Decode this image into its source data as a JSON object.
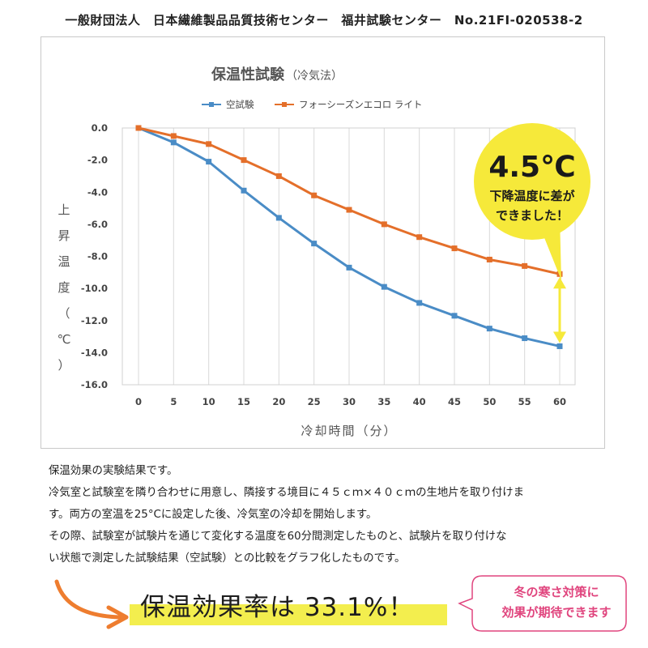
{
  "header": {
    "text": "一般財団法人　日本繊維製品品質技術センター　福井試験センター　No.21FI-020538-2"
  },
  "chart_data": {
    "type": "line",
    "title": "保温性試験",
    "subtitle": "（冷気法）",
    "xlabel": "冷却時間（分）",
    "ylabel": "上昇温度（℃）",
    "x": [
      0,
      5,
      10,
      15,
      20,
      25,
      30,
      35,
      40,
      45,
      50,
      55,
      60
    ],
    "xlim": [
      0,
      60
    ],
    "ylim": [
      -16,
      0
    ],
    "yticks": [
      0,
      -2,
      -4,
      -6,
      -8,
      -10,
      -12,
      -14,
      -16
    ],
    "ytick_labels": [
      "0.0",
      "-2.0",
      "-4.0",
      "-6.0",
      "-8.0",
      "-10.0",
      "-12.0",
      "-14.0",
      "-16.0"
    ],
    "grid": "vertical",
    "legend_position": "top",
    "series": [
      {
        "name": "空試験",
        "color": "#4a8cc6",
        "marker": "square",
        "values": [
          0,
          -0.9,
          -2.1,
          -3.9,
          -5.6,
          -7.2,
          -8.7,
          -9.9,
          -10.9,
          -11.7,
          -12.5,
          -13.1,
          -13.6
        ]
      },
      {
        "name": "フォーシーズンエコロ ライト",
        "color": "#e46f2a",
        "marker": "square",
        "values": [
          0,
          -0.5,
          -1.0,
          -2.0,
          -3.0,
          -4.2,
          -5.1,
          -6.0,
          -6.8,
          -7.5,
          -8.2,
          -8.6,
          -9.1
        ]
      }
    ],
    "annotation": {
      "big": "4.5℃",
      "line1": "下降温度に差が",
      "line2": "できました！",
      "color": "#f6e93a",
      "arrow_color": "#f6e93a"
    }
  },
  "description": {
    "lines": [
      "保温効果の実験結果です。",
      "冷気室と試験室を隣り合わせに用意し、隣接する境目に４５ｃｍ×４０ｃｍの生地片を取り付けま",
      "す。両方の室温を25°Cに設定した後、冷気室の冷却を開始します。",
      "その際、試験室が試験片を通じて変化する温度を60分間測定したものと、試験片を取り付けな",
      "い状態で測定した試験結果（空試験）との比較をグラフ化したものです。"
    ]
  },
  "result": {
    "text": "保温効果率は 33.1%！",
    "highlight_color": "#f3ee4e",
    "arrow_color": "#ee7d2f"
  },
  "callout": {
    "line1": "冬の寒さ対策に",
    "line2": "効果が期待できます",
    "color": "#e0457e"
  }
}
